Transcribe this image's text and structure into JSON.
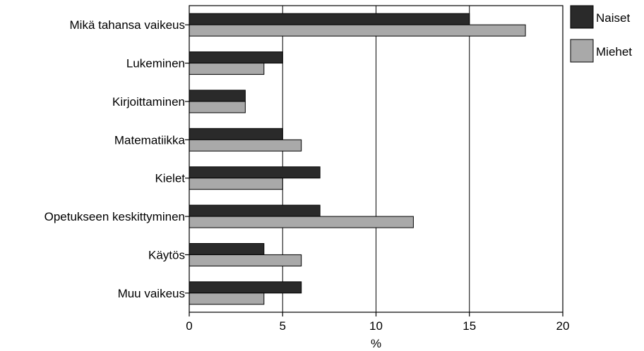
{
  "chart_data": {
    "type": "bar",
    "orientation": "horizontal",
    "categories": [
      "Mikä tahansa vaikeus",
      "Lukeminen",
      "Kirjoittaminen",
      "Matematiikka",
      "Kielet",
      "Opetukseen keskittyminen",
      "Käytös",
      "Muu vaikeus"
    ],
    "series": [
      {
        "name": "Naiset",
        "color": "#2a2a2a",
        "values": [
          15,
          5,
          3,
          5,
          7,
          7,
          4,
          6
        ]
      },
      {
        "name": "Miehet",
        "color": "#a9a9a9",
        "values": [
          18,
          4,
          3,
          6,
          5,
          12,
          6,
          4
        ]
      }
    ],
    "xlabel": "%",
    "xlim": [
      0,
      20
    ],
    "xticks": [
      0,
      5,
      10,
      15,
      20
    ],
    "grid": "vertical",
    "legend_position": "top-right"
  }
}
